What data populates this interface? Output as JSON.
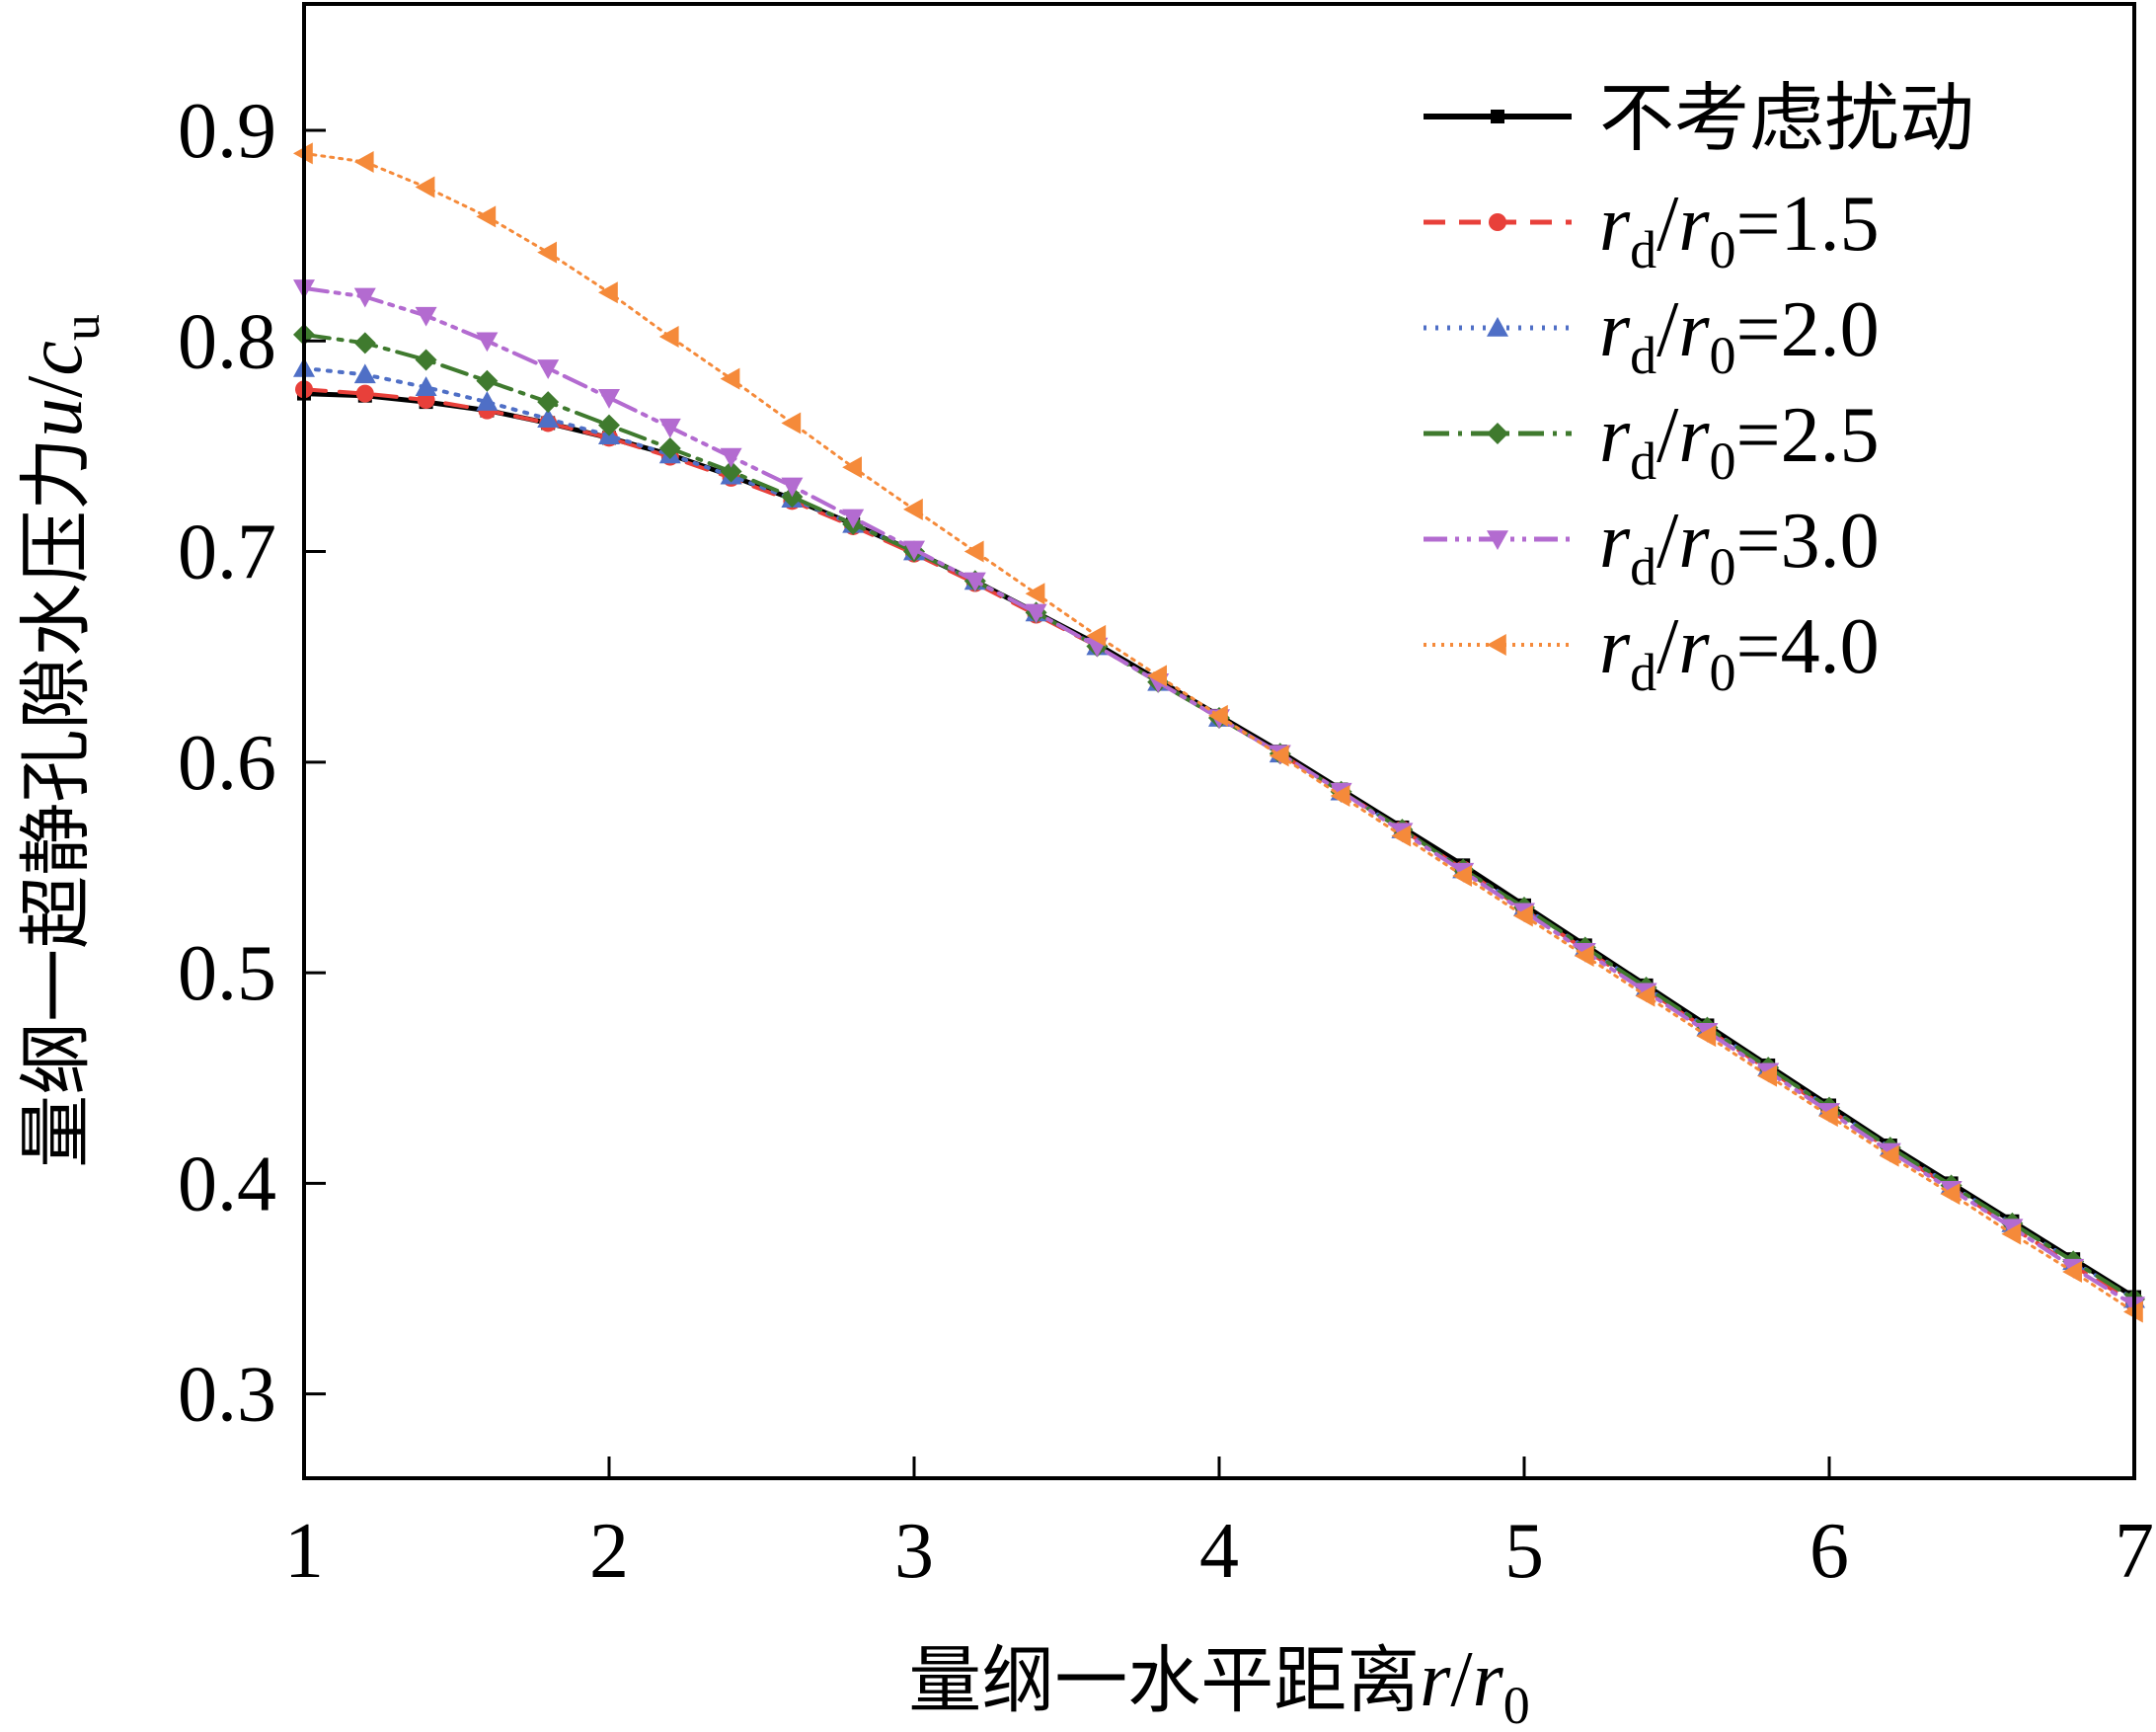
{
  "chart_data": {
    "type": "line",
    "xlabel": {
      "prefix": "量纲一水平距离",
      "var": "r",
      "den": "r",
      "den_sub": "0"
    },
    "ylabel": {
      "prefix": "量纲一超静孔隙水压力",
      "var": "u",
      "den": "c",
      "den_sub": "u"
    },
    "xlim": [
      1,
      7
    ],
    "ylim": [
      0.26,
      0.96
    ],
    "xticks": [
      1,
      2,
      3,
      4,
      5,
      6,
      7
    ],
    "yticks": [
      0.3,
      0.4,
      0.5,
      0.6,
      0.7,
      0.8,
      0.9
    ],
    "ytick_labels": [
      "0.3",
      "0.4",
      "0.5",
      "0.6",
      "0.7",
      "0.8",
      "0.9"
    ],
    "grid": false,
    "legend_position": "top-right",
    "x": [
      1.0,
      1.2,
      1.4,
      1.6,
      1.8,
      2.0,
      2.2,
      2.4,
      2.6,
      2.8,
      3.0,
      3.2,
      3.4,
      3.6,
      3.8,
      4.0,
      4.2,
      4.4,
      4.6,
      4.8,
      5.0,
      5.2,
      5.4,
      5.6,
      5.8,
      6.0,
      6.2,
      6.4,
      6.6,
      6.8,
      7.0
    ],
    "series": [
      {
        "name": "不考虑扰动",
        "color": "#000000",
        "marker": "square",
        "dash": "",
        "width": 5,
        "values": [
          0.775,
          0.774,
          0.771,
          0.767,
          0.761,
          0.754,
          0.746,
          0.736,
          0.725,
          0.713,
          0.7,
          0.686,
          0.671,
          0.656,
          0.639,
          0.622,
          0.605,
          0.587,
          0.569,
          0.551,
          0.532,
          0.513,
          0.494,
          0.475,
          0.456,
          0.437,
          0.418,
          0.4,
          0.382,
          0.364,
          0.346
        ]
      },
      {
        "name_parts": {
          "var": "r",
          "sub": "d",
          "var2": "r",
          "sub2": "0",
          "value": "=1.5"
        },
        "color": "#e8403a",
        "marker": "circle",
        "dash": "22,14",
        "width": 4,
        "values": [
          0.777,
          0.775,
          0.772,
          0.767,
          0.761,
          0.754,
          0.745,
          0.735,
          0.724,
          0.712,
          0.699,
          0.685,
          0.67,
          0.655,
          0.638,
          0.621,
          0.604,
          0.586,
          0.568,
          0.549,
          0.53,
          0.511,
          0.492,
          0.473,
          0.454,
          0.435,
          0.416,
          0.398,
          0.379,
          0.361,
          0.343
        ]
      },
      {
        "name_parts": {
          "var": "r",
          "sub": "d",
          "var2": "r",
          "sub2": "0",
          "value": "=2.0"
        },
        "color": "#4f6fc6",
        "marker": "triangle-up",
        "dash": "3,9",
        "width": 4,
        "values": [
          0.787,
          0.784,
          0.778,
          0.771,
          0.763,
          0.755,
          0.746,
          0.736,
          0.725,
          0.713,
          0.7,
          0.686,
          0.671,
          0.655,
          0.638,
          0.621,
          0.604,
          0.586,
          0.568,
          0.549,
          0.531,
          0.512,
          0.493,
          0.474,
          0.455,
          0.436,
          0.417,
          0.399,
          0.381,
          0.363,
          0.345
        ]
      },
      {
        "name_parts": {
          "var": "r",
          "sub": "d",
          "var2": "r",
          "sub2": "0",
          "value": "=2.5"
        },
        "color": "#3f7a2e",
        "marker": "diamond",
        "dash": "26,9,4,9",
        "width": 4,
        "values": [
          0.803,
          0.799,
          0.791,
          0.781,
          0.771,
          0.76,
          0.749,
          0.738,
          0.726,
          0.713,
          0.7,
          0.686,
          0.671,
          0.655,
          0.638,
          0.621,
          0.604,
          0.586,
          0.568,
          0.549,
          0.531,
          0.512,
          0.493,
          0.474,
          0.455,
          0.436,
          0.417,
          0.399,
          0.381,
          0.363,
          0.345
        ]
      },
      {
        "name_parts": {
          "var": "r",
          "sub": "d",
          "var2": "r",
          "sub2": "0",
          "value": "=3.0"
        },
        "color": "#b36bd0",
        "marker": "triangle-down",
        "dash": "24,8,4,8,4,8",
        "width": 4,
        "values": [
          0.825,
          0.821,
          0.812,
          0.8,
          0.787,
          0.773,
          0.759,
          0.745,
          0.731,
          0.716,
          0.701,
          0.686,
          0.671,
          0.655,
          0.638,
          0.621,
          0.604,
          0.586,
          0.567,
          0.548,
          0.529,
          0.51,
          0.491,
          0.472,
          0.453,
          0.434,
          0.415,
          0.397,
          0.379,
          0.36,
          0.342
        ]
      },
      {
        "name_parts": {
          "var": "r",
          "sub": "d",
          "var2": "r",
          "sub2": "0",
          "value": "=4.0"
        },
        "color": "#f58a3a",
        "marker": "triangle-left",
        "dash": "3,6",
        "width": 3,
        "values": [
          0.889,
          0.885,
          0.873,
          0.859,
          0.842,
          0.823,
          0.802,
          0.782,
          0.761,
          0.74,
          0.72,
          0.7,
          0.68,
          0.66,
          0.641,
          0.622,
          0.603,
          0.584,
          0.565,
          0.546,
          0.527,
          0.508,
          0.489,
          0.47,
          0.451,
          0.432,
          0.413,
          0.395,
          0.376,
          0.358,
          0.339
        ]
      }
    ]
  }
}
